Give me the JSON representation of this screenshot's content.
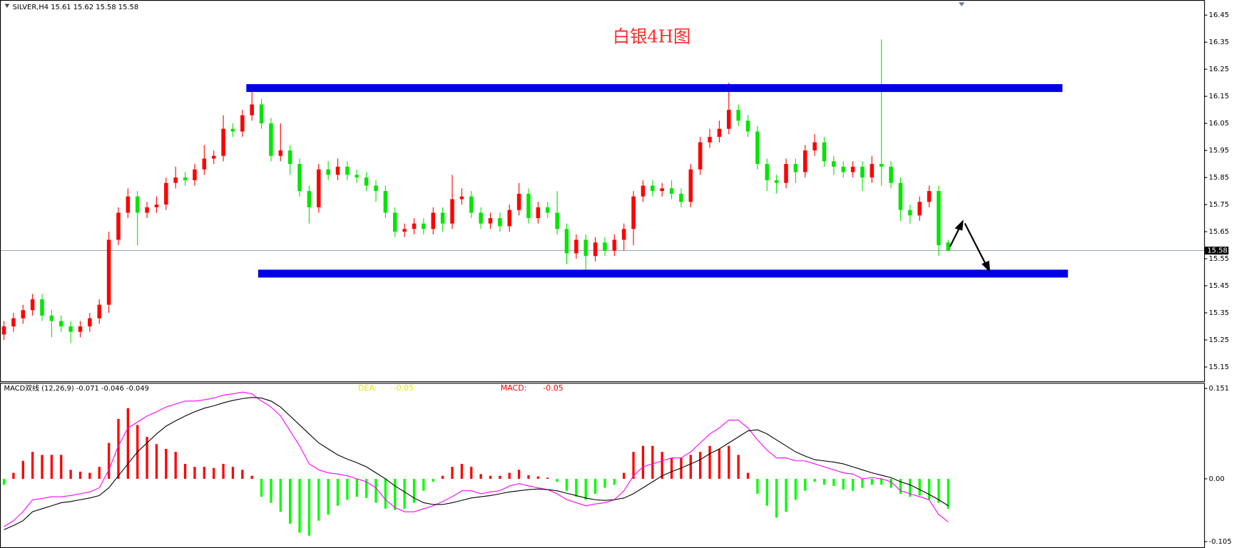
{
  "chart_data": [
    {
      "type": "candlestick",
      "header": "SILVER,H4  15.61 15.62 15.58 15.58",
      "title": "白银4H图",
      "up_color": "#ff0000",
      "down_color": "#00e600",
      "ylim": [
        15.1,
        16.5
      ],
      "yticks": [
        16.45,
        16.35,
        16.25,
        16.15,
        16.05,
        15.95,
        15.85,
        15.75,
        15.65,
        15.55,
        15.45,
        15.35,
        15.25,
        15.15
      ],
      "current_price": 15.58,
      "open": [
        15.27,
        15.3,
        15.33,
        15.36,
        15.4,
        15.34,
        15.32,
        15.3,
        15.28,
        15.3,
        15.33,
        15.38,
        15.62,
        15.72,
        15.78,
        15.72,
        15.74,
        15.75,
        15.83,
        15.85,
        15.84,
        15.88,
        15.92,
        15.93,
        16.03,
        16.02,
        16.08,
        16.12,
        16.05,
        15.93,
        15.95,
        15.9,
        15.8,
        15.74,
        15.88,
        15.86,
        15.89,
        15.86,
        15.85,
        15.82,
        15.8,
        15.72,
        15.65,
        15.66,
        15.68,
        15.66,
        15.72,
        15.68,
        15.77,
        15.78,
        15.72,
        15.68,
        15.7,
        15.67,
        15.73,
        15.79,
        15.7,
        15.74,
        15.72,
        15.66,
        15.57,
        15.62,
        15.56,
        15.61,
        15.58,
        15.62,
        15.66,
        15.78,
        15.82,
        15.8,
        15.81,
        15.79,
        15.76,
        15.88,
        15.98,
        16.0,
        16.03,
        16.1,
        16.06,
        16.02,
        15.9,
        15.84,
        15.83,
        15.9,
        15.87,
        15.95,
        15.98,
        15.91,
        15.89,
        15.87,
        15.89,
        15.85,
        15.9,
        15.89,
        15.83,
        15.73,
        15.71,
        15.76,
        15.8,
        15.61
      ],
      "high": [
        15.32,
        15.35,
        15.38,
        15.42,
        15.42,
        15.36,
        15.34,
        15.32,
        15.32,
        15.35,
        15.4,
        15.65,
        15.74,
        15.81,
        15.8,
        15.76,
        15.78,
        15.85,
        15.89,
        15.87,
        15.9,
        15.97,
        15.95,
        16.08,
        16.05,
        16.1,
        16.18,
        16.14,
        16.07,
        16.05,
        15.97,
        15.92,
        15.82,
        15.9,
        15.91,
        15.92,
        15.91,
        15.88,
        15.87,
        15.84,
        15.82,
        15.74,
        15.68,
        15.7,
        15.7,
        15.74,
        15.74,
        15.86,
        15.81,
        15.8,
        15.74,
        15.72,
        15.72,
        15.75,
        15.83,
        15.81,
        15.76,
        15.76,
        15.8,
        15.68,
        15.64,
        15.64,
        15.63,
        15.63,
        15.64,
        15.68,
        15.8,
        15.84,
        15.84,
        15.83,
        15.84,
        15.81,
        15.9,
        16.0,
        16.03,
        16.06,
        16.2,
        16.12,
        16.08,
        16.04,
        15.92,
        15.86,
        15.92,
        15.92,
        15.97,
        16.01,
        16.0,
        15.93,
        15.91,
        15.91,
        15.91,
        15.93,
        16.36,
        15.91,
        15.85,
        15.75,
        15.78,
        15.82,
        15.82,
        15.62
      ],
      "low": [
        15.25,
        15.28,
        15.31,
        15.34,
        15.32,
        15.26,
        15.28,
        15.24,
        15.26,
        15.28,
        15.31,
        15.35,
        15.6,
        15.7,
        15.6,
        15.7,
        15.72,
        15.73,
        15.81,
        15.82,
        15.82,
        15.86,
        15.9,
        15.91,
        16.0,
        16.0,
        16.06,
        16.03,
        15.91,
        15.91,
        15.86,
        15.78,
        15.68,
        15.72,
        15.84,
        15.84,
        15.84,
        15.83,
        15.8,
        15.76,
        15.7,
        15.63,
        15.63,
        15.64,
        15.64,
        15.64,
        15.65,
        15.66,
        15.75,
        15.7,
        15.66,
        15.66,
        15.65,
        15.65,
        15.71,
        15.68,
        15.68,
        15.7,
        15.64,
        15.53,
        15.55,
        15.49,
        15.54,
        15.56,
        15.56,
        15.58,
        15.6,
        15.76,
        15.78,
        15.78,
        15.77,
        15.74,
        15.74,
        15.86,
        15.96,
        15.98,
        16.01,
        16.04,
        16.0,
        15.88,
        15.8,
        15.79,
        15.81,
        15.83,
        15.85,
        15.93,
        15.89,
        15.86,
        15.85,
        15.85,
        15.8,
        15.83,
        15.82,
        15.81,
        15.69,
        15.68,
        15.69,
        15.74,
        15.56,
        15.58
      ],
      "close": [
        15.3,
        15.33,
        15.36,
        15.4,
        15.34,
        15.32,
        15.3,
        15.28,
        15.3,
        15.33,
        15.38,
        15.62,
        15.72,
        15.78,
        15.72,
        15.74,
        15.75,
        15.83,
        15.85,
        15.84,
        15.88,
        15.92,
        15.93,
        16.03,
        16.02,
        16.08,
        16.12,
        16.05,
        15.93,
        15.95,
        15.9,
        15.8,
        15.74,
        15.88,
        15.86,
        15.89,
        15.86,
        15.85,
        15.82,
        15.8,
        15.72,
        15.65,
        15.66,
        15.68,
        15.66,
        15.72,
        15.68,
        15.77,
        15.78,
        15.72,
        15.68,
        15.7,
        15.67,
        15.73,
        15.79,
        15.7,
        15.74,
        15.72,
        15.66,
        15.57,
        15.62,
        15.56,
        15.61,
        15.58,
        15.62,
        15.66,
        15.78,
        15.82,
        15.8,
        15.81,
        15.79,
        15.76,
        15.88,
        15.98,
        16.0,
        16.03,
        16.1,
        16.06,
        16.02,
        15.9,
        15.84,
        15.83,
        15.9,
        15.87,
        15.95,
        15.98,
        15.91,
        15.89,
        15.87,
        15.89,
        15.85,
        15.9,
        15.89,
        15.83,
        15.73,
        15.71,
        15.76,
        15.8,
        15.6,
        15.58
      ]
    },
    {
      "type": "macd",
      "header": "MACD双线 (12,26,9) -0.071 -0.046 -0.049",
      "dea_label": "DEA:",
      "dea_value": "-0.05",
      "macd_label": "MACD:",
      "macd_value": "-0.05",
      "ylim": [
        -0.113,
        0.159
      ],
      "yticks": [
        0.151,
        {
          "value": 0,
          "label": "0.00"
        },
        -0.105
      ],
      "histogram": {
        "up_color": "#ff0000",
        "down_color": "#00ff00",
        "values": [
          -0.01,
          0.01,
          0.03,
          0.045,
          0.04,
          0.04,
          0.04,
          0.015,
          0.012,
          0.01,
          0.02,
          0.06,
          0.1,
          0.118,
          0.09,
          0.07,
          0.058,
          0.05,
          0.045,
          0.025,
          0.02,
          0.02,
          0.018,
          0.025,
          0.02,
          0.015,
          0.005,
          -0.03,
          -0.04,
          -0.055,
          -0.075,
          -0.09,
          -0.095,
          -0.07,
          -0.06,
          -0.045,
          -0.035,
          -0.03,
          -0.032,
          -0.04,
          -0.05,
          -0.052,
          -0.05,
          -0.04,
          -0.02,
          -0.005,
          0.005,
          0.02,
          0.025,
          0.02,
          0.008,
          0.005,
          0.005,
          0.01,
          0.015,
          0.006,
          0.004,
          0.002,
          -0.005,
          -0.02,
          -0.03,
          -0.035,
          -0.025,
          -0.015,
          -0.01,
          0.01,
          0.045,
          0.055,
          0.055,
          0.045,
          0.035,
          0.035,
          0.04,
          0.045,
          0.055,
          0.05,
          0.055,
          0.04,
          0.01,
          -0.025,
          -0.045,
          -0.065,
          -0.055,
          -0.035,
          -0.02,
          -0.005,
          -0.01,
          -0.012,
          -0.018,
          -0.02,
          -0.015,
          -0.01,
          -0.01,
          -0.015,
          -0.025,
          -0.03,
          -0.028,
          -0.035,
          -0.04,
          -0.05
        ]
      },
      "lines": [
        {
          "color": "#ff00ff",
          "values": [
            -0.08,
            -0.07,
            -0.055,
            -0.035,
            -0.033,
            -0.03,
            -0.03,
            -0.028,
            -0.025,
            -0.022,
            -0.015,
            0.015,
            0.055,
            0.085,
            0.095,
            0.105,
            0.112,
            0.12,
            0.125,
            0.13,
            0.13,
            0.132,
            0.135,
            0.14,
            0.142,
            0.145,
            0.142,
            0.13,
            0.12,
            0.105,
            0.08,
            0.055,
            0.025,
            0.015,
            0.01,
            0.008,
            0.005,
            0.0,
            -0.005,
            -0.015,
            -0.035,
            -0.048,
            -0.055,
            -0.055,
            -0.05,
            -0.045,
            -0.038,
            -0.03,
            -0.02,
            -0.02,
            -0.025,
            -0.022,
            -0.02,
            -0.012,
            -0.008,
            -0.012,
            -0.015,
            -0.018,
            -0.025,
            -0.035,
            -0.04,
            -0.045,
            -0.042,
            -0.04,
            -0.035,
            -0.02,
            0.005,
            0.02,
            0.025,
            0.03,
            0.035,
            0.035,
            0.045,
            0.06,
            0.075,
            0.085,
            0.098,
            0.098,
            0.085,
            0.065,
            0.048,
            0.035,
            0.035,
            0.03,
            0.03,
            0.025,
            0.02,
            0.015,
            0.01,
            0.008,
            0.0,
            0.002,
            0.0,
            -0.005,
            -0.02,
            -0.025,
            -0.03,
            -0.035,
            -0.06,
            -0.072
          ]
        },
        {
          "color": "#000000",
          "values": [
            -0.085,
            -0.078,
            -0.07,
            -0.055,
            -0.05,
            -0.045,
            -0.04,
            -0.038,
            -0.035,
            -0.032,
            -0.028,
            -0.015,
            0.005,
            0.025,
            0.045,
            0.06,
            0.075,
            0.088,
            0.097,
            0.105,
            0.112,
            0.118,
            0.122,
            0.127,
            0.131,
            0.134,
            0.136,
            0.135,
            0.13,
            0.12,
            0.105,
            0.09,
            0.075,
            0.06,
            0.05,
            0.04,
            0.033,
            0.027,
            0.02,
            0.01,
            0.0,
            -0.012,
            -0.022,
            -0.032,
            -0.04,
            -0.043,
            -0.043,
            -0.04,
            -0.036,
            -0.032,
            -0.03,
            -0.028,
            -0.025,
            -0.022,
            -0.02,
            -0.018,
            -0.017,
            -0.018,
            -0.02,
            -0.024,
            -0.028,
            -0.032,
            -0.035,
            -0.036,
            -0.035,
            -0.032,
            -0.025,
            -0.015,
            -0.005,
            0.005,
            0.012,
            0.018,
            0.025,
            0.032,
            0.042,
            0.05,
            0.06,
            0.07,
            0.08,
            0.082,
            0.075,
            0.065,
            0.055,
            0.045,
            0.038,
            0.032,
            0.03,
            0.028,
            0.025,
            0.02,
            0.015,
            0.01,
            0.006,
            0.002,
            -0.005,
            -0.01,
            -0.018,
            -0.026,
            -0.035,
            -0.045
          ]
        }
      ]
    }
  ]
}
